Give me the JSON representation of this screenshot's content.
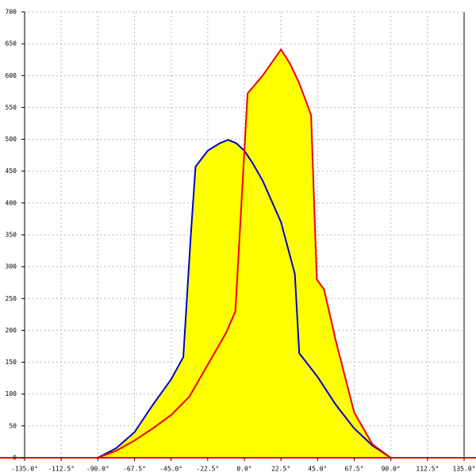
{
  "chart_data": {
    "type": "area-line",
    "grid": true,
    "fill_color": "#ffff00",
    "xlim": [
      -135,
      135
    ],
    "ylim": [
      0,
      700
    ],
    "xticks": [
      {
        "value": -135,
        "label": "-135.0°"
      },
      {
        "value": -112.5,
        "label": "-112.5°"
      },
      {
        "value": -90,
        "label": "-90.0°"
      },
      {
        "value": -67.5,
        "label": "-67.5°"
      },
      {
        "value": -45,
        "label": "-45.0°"
      },
      {
        "value": -22.5,
        "label": "-22.5°"
      },
      {
        "value": 0,
        "label": "0.0°"
      },
      {
        "value": 22.5,
        "label": "22.5°"
      },
      {
        "value": 45,
        "label": "45.0°"
      },
      {
        "value": 67.5,
        "label": "67.5°"
      },
      {
        "value": 90,
        "label": "90.0°"
      },
      {
        "value": 112.5,
        "label": "112.5°"
      },
      {
        "value": 135,
        "label": "135.0°"
      }
    ],
    "yticks": [
      0,
      50,
      100,
      150,
      200,
      250,
      300,
      350,
      400,
      450,
      500,
      550,
      600,
      650,
      700
    ],
    "series": [
      {
        "color": "#0000cc",
        "x": [
          -90,
          -78.75,
          -67.5,
          -56.25,
          -45,
          -37.5,
          -33,
          -30,
          -22.5,
          -15,
          -10,
          -5,
          0,
          5,
          11.25,
          22.5,
          31,
          33.75,
          45,
          56.25,
          67.5,
          78.75,
          90
        ],
        "values": [
          0,
          15,
          40,
          83,
          123,
          158,
          345,
          457,
          482,
          494,
          499,
          494,
          482,
          463,
          435,
          370,
          289,
          164,
          127,
          83,
          46,
          19,
          0
        ]
      },
      {
        "color": "#ee0000",
        "x": [
          -90,
          -78.75,
          -67.5,
          -56.25,
          -45,
          -33.75,
          -22.5,
          -11.25,
          -5.5,
          2,
          11.25,
          22.5,
          28,
          33.75,
          41,
          44.5,
          49,
          56.25,
          67.5,
          78.75,
          90
        ],
        "values": [
          0,
          11,
          27,
          46,
          67,
          96,
          146,
          196,
          230,
          572,
          600,
          641,
          619,
          588,
          538,
          280,
          264,
          183,
          71,
          21,
          0
        ]
      }
    ]
  }
}
